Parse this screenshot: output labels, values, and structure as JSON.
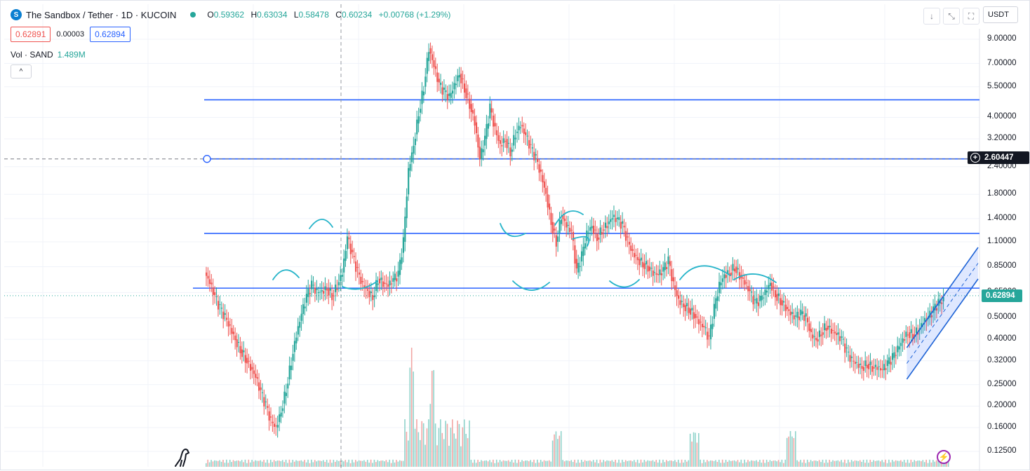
{
  "header": {
    "title": "The Sandbox / Tether · 1D · KUCOIN",
    "ohlc": [
      {
        "key": "O",
        "value": "0.59362"
      },
      {
        "key": "H",
        "value": "0.63034"
      },
      {
        "key": "L",
        "value": "0.58478"
      },
      {
        "key": "C",
        "value": "0.60234"
      }
    ],
    "change": "+0.00768 (+1.29%)",
    "bid": "0.62891",
    "spread": "0.00003",
    "ask": "0.62894",
    "volume_label": "Vol · SAND",
    "volume_value": "1.489M",
    "currency": "USDT",
    "logo_letter": "S"
  },
  "toolbar": {
    "download_icon": "↓",
    "compress_icon": "⤡",
    "fullscreen_icon": "⛶",
    "collapse_icon": "^"
  },
  "price_axis": {
    "labels": [
      "9.00000",
      "7.00000",
      "5.50000",
      "4.00000",
      "3.20000",
      "2.40000",
      "1.80000",
      "1.40000",
      "1.10000",
      "0.85000",
      "0.65000",
      "0.50000",
      "0.40000",
      "0.32000",
      "0.25000",
      "0.20000",
      "0.16000",
      "0.12500"
    ],
    "crosshair_price": "2.60447",
    "last_price": "0.62894"
  },
  "colors": {
    "up": "#26a69a",
    "down": "#ef5350",
    "line": "#2962ff",
    "channel": "#1e63d6",
    "annotation": "#26b4c9"
  },
  "chart_data": {
    "type": "candlestick",
    "scale": "log",
    "ylim": [
      0.115,
      10.5
    ],
    "horizontal_levels": [
      4.8,
      2.6,
      1.2,
      0.68
    ],
    "close_series": [
      0.8,
      0.72,
      0.62,
      0.55,
      0.5,
      0.45,
      0.4,
      0.36,
      0.33,
      0.3,
      0.27,
      0.23,
      0.2,
      0.17,
      0.16,
      0.19,
      0.24,
      0.32,
      0.42,
      0.52,
      0.62,
      0.7,
      0.65,
      0.66,
      0.68,
      0.63,
      0.7,
      0.8,
      1.15,
      0.95,
      0.8,
      0.7,
      0.66,
      0.62,
      0.75,
      0.72,
      0.7,
      0.74,
      0.78,
      1.1,
      2.3,
      3.0,
      4.2,
      5.5,
      8.2,
      6.8,
      5.6,
      5.2,
      4.9,
      5.6,
      6.3,
      5.4,
      4.6,
      3.8,
      2.6,
      3.2,
      4.4,
      3.5,
      3.0,
      3.2,
      2.8,
      3.4,
      3.7,
      3.3,
      2.9,
      2.6,
      2.2,
      1.8,
      1.35,
      1.1,
      1.45,
      1.3,
      1.22,
      0.8,
      0.95,
      1.2,
      1.3,
      1.15,
      1.25,
      1.32,
      1.42,
      1.38,
      1.3,
      1.1,
      0.98,
      0.92,
      0.88,
      0.85,
      0.8,
      0.78,
      0.82,
      0.9,
      0.7,
      0.6,
      0.57,
      0.55,
      0.52,
      0.48,
      0.45,
      0.4,
      0.55,
      0.7,
      0.78,
      0.8,
      0.85,
      0.78,
      0.72,
      0.65,
      0.58,
      0.6,
      0.65,
      0.72,
      0.64,
      0.6,
      0.56,
      0.52,
      0.5,
      0.52,
      0.5,
      0.42,
      0.4,
      0.43,
      0.46,
      0.44,
      0.42,
      0.4,
      0.35,
      0.32,
      0.31,
      0.3,
      0.31,
      0.3,
      0.3,
      0.29,
      0.31,
      0.33,
      0.36,
      0.4,
      0.43,
      0.42,
      0.44,
      0.48,
      0.5,
      0.54,
      0.58,
      0.6
    ],
    "channel": {
      "start_index": 139,
      "end_index": 153
    },
    "volume_peaks": [
      {
        "index": 40,
        "relative": 1.0
      },
      {
        "index": 44,
        "relative": 0.85
      }
    ]
  }
}
